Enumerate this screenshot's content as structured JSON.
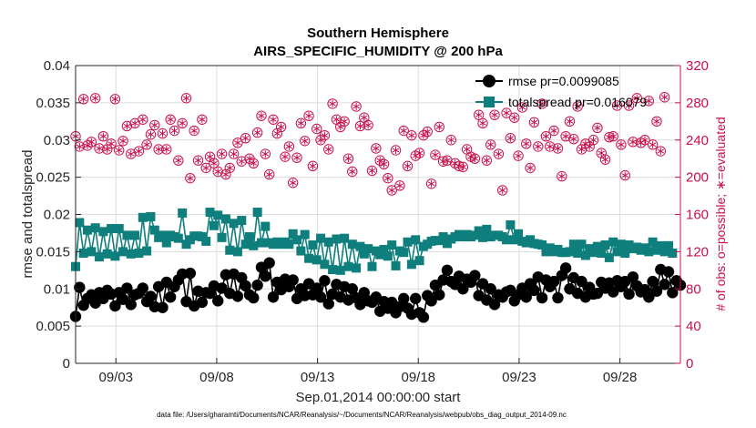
{
  "chart_data": {
    "type": "line",
    "title": "Southern Hemisphere",
    "subtitle": "AIRS_SPECIFIC_HUMIDITY @ 200 hPa",
    "xlabel": "Sep.01,2014 00:00:00 start",
    "ylabel_left": "rmse and totalspread",
    "ylabel_right": "# of obs: o=possible; ∗=evaluated",
    "footnote": "data file: /Users/gharamti/Documents/NCAR/Reanalysis/~/Documents/NCAR/Reanalysis/webpub/obs_diag_output_2014-09.nc",
    "x_tick_labels": [
      "09/03",
      "09/08",
      "09/13",
      "09/18",
      "09/23",
      "09/28"
    ],
    "x_tick_days": [
      3,
      8,
      13,
      18,
      23,
      28
    ],
    "xlim": [
      1,
      31
    ],
    "ylim_left": [
      0,
      0.04
    ],
    "left_ticks": [
      "0",
      "0.005",
      "0.01",
      "0.015",
      "0.02",
      "0.025",
      "0.03",
      "0.035",
      "0.04"
    ],
    "ylim_right": [
      0,
      320
    ],
    "right_ticks": [
      "0",
      "40",
      "80",
      "120",
      "160",
      "200",
      "240",
      "280",
      "320"
    ],
    "grid": true,
    "legend_position": "top-right",
    "colors": {
      "rmse": "#000000",
      "totalspread": "#0e7f7c",
      "obs": "#c8104a"
    },
    "series": [
      {
        "name": "rmse pr=0.0099085",
        "axis": "left",
        "marker": "circle",
        "values": [
          0.0063,
          0.0102,
          0.0078,
          0.0087,
          0.0092,
          0.0081,
          0.0095,
          0.0087,
          0.0098,
          0.0093,
          0.0077,
          0.0095,
          0.0086,
          0.0101,
          0.0079,
          0.0092,
          0.0094,
          0.0101,
          0.0083,
          0.009,
          0.0076,
          0.0103,
          0.0075,
          0.0109,
          0.0089,
          0.0103,
          0.0112,
          0.012,
          0.0083,
          0.0121,
          0.0077,
          0.0097,
          0.0082,
          0.0095,
          0.0094,
          0.0104,
          0.0084,
          0.0101,
          0.0119,
          0.0094,
          0.012,
          0.009,
          0.0115,
          0.0104,
          0.0092,
          0.0088,
          0.0105,
          0.0129,
          0.0117,
          0.0135,
          0.0089,
          0.0109,
          0.0099,
          0.0113,
          0.0103,
          0.0112,
          0.0087,
          0.01,
          0.0091,
          0.0107,
          0.0092,
          0.0101,
          0.0089,
          0.0111,
          0.008,
          0.0093,
          0.0106,
          0.0089,
          0.0103,
          0.0085,
          0.01,
          0.0088,
          0.0079,
          0.0095,
          0.0084,
          0.0082,
          0.0089,
          0.007,
          0.0083,
          0.0074,
          0.0082,
          0.0068,
          0.0076,
          0.0087,
          0.0074,
          0.0066,
          0.0087,
          0.0068,
          0.0062,
          0.0091,
          0.0084,
          0.0105,
          0.0092,
          0.0112,
          0.0125,
          0.011,
          0.0106,
          0.0117,
          0.01,
          0.0113,
          0.0109,
          0.0118,
          0.0091,
          0.0107,
          0.0085,
          0.01,
          0.0079,
          0.0092,
          0.0089,
          0.0096,
          0.0098,
          0.0084,
          0.0092,
          0.0101,
          0.0089,
          0.0107,
          0.0098,
          0.0116,
          0.0088,
          0.0112,
          0.0103,
          0.011,
          0.0088,
          0.0118,
          0.0128,
          0.01,
          0.0115,
          0.0094,
          0.011,
          0.0089,
          0.0102,
          0.0093,
          0.0094,
          0.0109,
          0.0101,
          0.0108,
          0.0096,
          0.0111,
          0.0103,
          0.011,
          0.0093,
          0.0116,
          0.0104,
          0.0096,
          0.0099,
          0.0089,
          0.011,
          0.0097,
          0.0126,
          0.0106,
          0.0123,
          0.0095,
          0.0111,
          0.0105
        ]
      },
      {
        "name": "totalspread pr=0.016079",
        "axis": "left",
        "marker": "square",
        "values": [
          0.013,
          0.0189,
          0.0148,
          0.0179,
          0.015,
          0.0182,
          0.0143,
          0.0177,
          0.0147,
          0.0181,
          0.0144,
          0.0181,
          0.015,
          0.0172,
          0.0147,
          0.0172,
          0.0148,
          0.0196,
          0.0151,
          0.0197,
          0.0179,
          0.0169,
          0.0172,
          0.0162,
          0.0172,
          0.017,
          0.0168,
          0.0202,
          0.016,
          0.0166,
          0.0171,
          0.0171,
          0.017,
          0.0164,
          0.0203,
          0.0185,
          0.0199,
          0.0169,
          0.0194,
          0.0152,
          0.0188,
          0.015,
          0.0192,
          0.016,
          0.017,
          0.0158,
          0.0203,
          0.0162,
          0.0184,
          0.0162,
          0.016,
          0.0163,
          0.016,
          0.0163,
          0.016,
          0.0174,
          0.0166,
          0.0151,
          0.0173,
          0.0141,
          0.0159,
          0.0139,
          0.0168,
          0.0133,
          0.0163,
          0.0126,
          0.0167,
          0.0125,
          0.0168,
          0.013,
          0.016,
          0.0128,
          0.0157,
          0.0147,
          0.0154,
          0.013,
          0.0151,
          0.0146,
          0.0153,
          0.0144,
          0.0159,
          0.0131,
          0.0151,
          0.0149,
          0.0163,
          0.0133,
          0.0166,
          0.0138,
          0.0157,
          0.016,
          0.0164,
          0.0165,
          0.0165,
          0.017,
          0.0161,
          0.0167,
          0.017,
          0.0173,
          0.017,
          0.0173,
          0.017,
          0.0172,
          0.0178,
          0.0169,
          0.018,
          0.017,
          0.0172,
          0.0172,
          0.017,
          0.0166,
          0.0186,
          0.0166,
          0.0174,
          0.0164,
          0.0162,
          0.0166,
          0.0161,
          0.016,
          0.0159,
          0.015,
          0.0155,
          0.015,
          0.0153,
          0.0149,
          0.0149,
          0.015,
          0.016,
          0.0148,
          0.016,
          0.0145,
          0.0154,
          0.0149,
          0.0157,
          0.0148,
          0.0159,
          0.0142,
          0.0163,
          0.015,
          0.016,
          0.0148,
          0.0159,
          0.0154,
          0.0156,
          0.0152,
          0.0155,
          0.015,
          0.0163,
          0.0152,
          0.0158,
          0.015,
          0.0158,
          0.0148
        ]
      },
      {
        "name": "obs possible",
        "axis": "right",
        "marker": "circle-open",
        "values": [
          244,
          233,
          284,
          234,
          238,
          285,
          231,
          244,
          230,
          236,
          284,
          229,
          239,
          255,
          225,
          258,
          228,
          262,
          235,
          246,
          256,
          230,
          247,
          230,
          262,
          250,
          218,
          258,
          285,
          199,
          250,
          218,
          262,
          210,
          222,
          215,
          206,
          225,
          203,
          210,
          225,
          237,
          217,
          242,
          220,
          215,
          248,
          266,
          225,
          203,
          262,
          247,
          254,
          222,
          233,
          194,
          221,
          258,
          239,
          266,
          212,
          252,
          240,
          245,
          230,
          279,
          262,
          254,
          260,
          220,
          206,
          276,
          255,
          264,
          256,
          207,
          231,
          218,
          214,
          199,
          186,
          229,
          191,
          250,
          212,
          245,
          223,
          226,
          245,
          249,
          193,
          224,
          254,
          217,
          218,
          240,
          215,
          212,
          211,
          230,
          222,
          220,
          267,
          258,
          218,
          235,
          267,
          225,
          186,
          269,
          242,
          264,
          223,
          275,
          236,
          210,
          259,
          233,
          279,
          244,
          233,
          250,
          231,
          201,
          244,
          260,
          241,
          276,
          230,
          236,
          233,
          240,
          253,
          226,
          219,
          243,
          244,
          277,
          235,
          202,
          277,
          238,
          285,
          237,
          240,
          282,
          235,
          260,
          228,
          286
        ]
      },
      {
        "name": "obs evaluated",
        "axis": "right",
        "marker": "asterisk",
        "values": [
          244,
          233,
          284,
          234,
          238,
          285,
          231,
          244,
          230,
          236,
          284,
          229,
          239,
          255,
          225,
          258,
          228,
          262,
          235,
          246,
          256,
          230,
          247,
          230,
          262,
          250,
          218,
          258,
          285,
          199,
          250,
          218,
          262,
          210,
          222,
          215,
          206,
          225,
          203,
          210,
          225,
          237,
          217,
          242,
          220,
          215,
          248,
          266,
          225,
          203,
          262,
          247,
          254,
          222,
          233,
          194,
          221,
          258,
          239,
          266,
          212,
          252,
          240,
          245,
          230,
          279,
          262,
          254,
          260,
          220,
          206,
          276,
          255,
          264,
          256,
          207,
          231,
          218,
          214,
          199,
          186,
          229,
          191,
          250,
          212,
          245,
          223,
          226,
          245,
          249,
          193,
          224,
          254,
          217,
          218,
          240,
          215,
          212,
          211,
          230,
          222,
          220,
          267,
          258,
          218,
          235,
          267,
          225,
          186,
          269,
          242,
          264,
          223,
          275,
          236,
          210,
          259,
          233,
          279,
          244,
          233,
          250,
          231,
          201,
          244,
          260,
          241,
          276,
          230,
          236,
          233,
          240,
          253,
          226,
          219,
          243,
          244,
          277,
          235,
          202,
          277,
          238,
          285,
          237,
          240,
          282,
          235,
          260,
          228,
          286
        ]
      }
    ]
  }
}
